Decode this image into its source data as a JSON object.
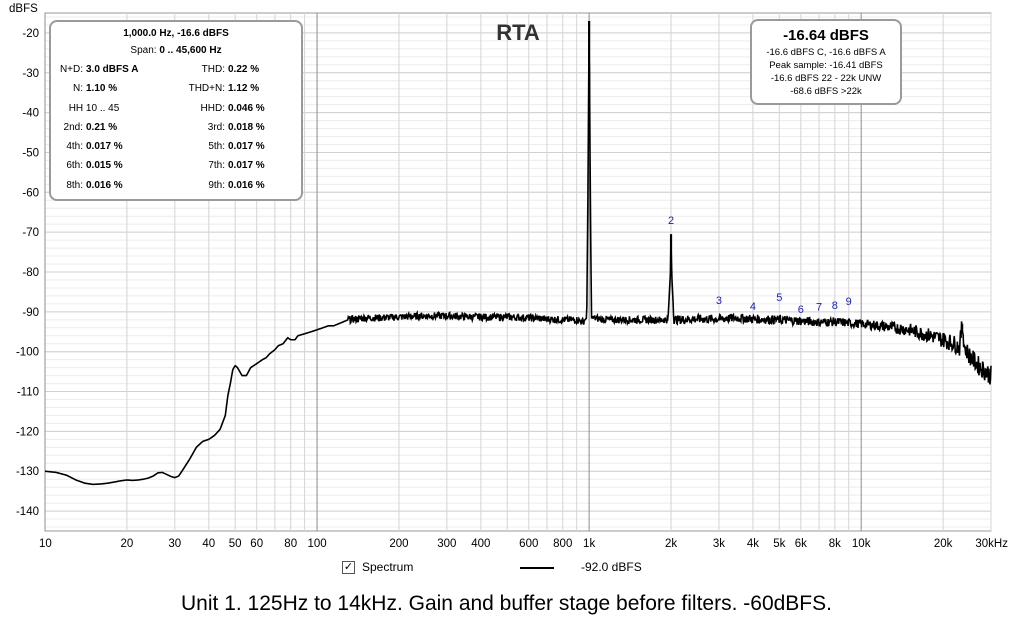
{
  "chart_data": {
    "type": "line",
    "title": "RTA",
    "ylabel": "dBFS",
    "xlabel": "",
    "x_scale": "log",
    "xlim": [
      10,
      30000
    ],
    "ylim": [
      -145,
      -15
    ],
    "grid": true,
    "y_ticks": [
      "-20",
      "-30",
      "-40",
      "-50",
      "-60",
      "-70",
      "-80",
      "-90",
      "-100",
      "-110",
      "-120",
      "-130",
      "-140"
    ],
    "y_tick_values": [
      -20,
      -30,
      -40,
      -50,
      -60,
      -70,
      -80,
      -90,
      -100,
      -110,
      -120,
      -130,
      -140
    ],
    "x_ticks": [
      "10",
      "20",
      "30",
      "40",
      "50",
      "60",
      "80",
      "100",
      "200",
      "300",
      "400",
      "600",
      "800",
      "1k",
      "2k",
      "3k",
      "4k",
      "5k",
      "6k",
      "8k",
      "10k",
      "20k",
      "30kHz"
    ],
    "x_tick_values": [
      10,
      20,
      30,
      40,
      50,
      60,
      80,
      100,
      200,
      300,
      400,
      600,
      800,
      1000,
      2000,
      3000,
      4000,
      5000,
      6000,
      8000,
      10000,
      20000,
      30000
    ],
    "series": [
      {
        "name": "Spectrum",
        "color": "#000000",
        "points": [
          [
            10,
            -130
          ],
          [
            11,
            -130.3
          ],
          [
            12,
            -131
          ],
          [
            13,
            -132.2
          ],
          [
            14,
            -133
          ],
          [
            15,
            -133.3
          ],
          [
            16,
            -133.2
          ],
          [
            17,
            -133
          ],
          [
            18,
            -132.7
          ],
          [
            19,
            -132.4
          ],
          [
            20,
            -132.2
          ],
          [
            21,
            -132.3
          ],
          [
            22,
            -132.2
          ],
          [
            23,
            -132
          ],
          [
            24,
            -131.7
          ],
          [
            25,
            -131.2
          ],
          [
            26,
            -130.4
          ],
          [
            27,
            -130.3
          ],
          [
            28,
            -130.8
          ],
          [
            29,
            -131.3
          ],
          [
            30,
            -131.6
          ],
          [
            31,
            -131.2
          ],
          [
            32,
            -129.8
          ],
          [
            34,
            -127
          ],
          [
            36,
            -124
          ],
          [
            38,
            -122.5
          ],
          [
            40,
            -122
          ],
          [
            42,
            -121
          ],
          [
            44,
            -119.5
          ],
          [
            46,
            -116
          ],
          [
            47,
            -111
          ],
          [
            48,
            -108
          ],
          [
            49,
            -104.5
          ],
          [
            50,
            -103.5
          ],
          [
            51,
            -104
          ],
          [
            53,
            -106
          ],
          [
            55,
            -106
          ],
          [
            57,
            -104
          ],
          [
            60,
            -103
          ],
          [
            63,
            -102
          ],
          [
            65,
            -101.5
          ],
          [
            67,
            -100.5
          ],
          [
            70,
            -99.5
          ],
          [
            72,
            -98.5
          ],
          [
            75,
            -98
          ],
          [
            78,
            -96.5
          ],
          [
            80,
            -97
          ],
          [
            83,
            -97
          ],
          [
            85,
            -96
          ],
          [
            90,
            -95.5
          ],
          [
            95,
            -95
          ],
          [
            100,
            -94.5
          ],
          [
            105,
            -94
          ],
          [
            110,
            -93.5
          ],
          [
            115,
            -93.5
          ],
          [
            120,
            -93
          ],
          [
            130,
            -92
          ],
          [
            140,
            -91.8
          ],
          [
            150,
            -91.5
          ],
          [
            170,
            -91.5
          ],
          [
            200,
            -91.3
          ],
          [
            250,
            -91
          ],
          [
            300,
            -91
          ],
          [
            350,
            -91.2
          ],
          [
            400,
            -91.3
          ],
          [
            500,
            -91.3
          ],
          [
            600,
            -91.5
          ],
          [
            700,
            -91.8
          ],
          [
            800,
            -92
          ],
          [
            900,
            -92
          ],
          [
            950,
            -92.5
          ],
          [
            980,
            -91.5
          ],
          [
            990,
            -60
          ],
          [
            1000,
            -17
          ],
          [
            1010,
            -60
          ],
          [
            1020,
            -91.5
          ],
          [
            1100,
            -91.8
          ],
          [
            1200,
            -92
          ],
          [
            1500,
            -92
          ],
          [
            1800,
            -92
          ],
          [
            1950,
            -92
          ],
          [
            1990,
            -80
          ],
          [
            2000,
            -70.5
          ],
          [
            2010,
            -80
          ],
          [
            2050,
            -92
          ],
          [
            2500,
            -91.8
          ],
          [
            3000,
            -91.8
          ],
          [
            3500,
            -91.5
          ],
          [
            4000,
            -91.8
          ],
          [
            5000,
            -92
          ],
          [
            6000,
            -92.3
          ],
          [
            7000,
            -92.6
          ],
          [
            8000,
            -92.5
          ],
          [
            9000,
            -92.8
          ],
          [
            10000,
            -93
          ],
          [
            12000,
            -93.6
          ],
          [
            15000,
            -94.5
          ],
          [
            18000,
            -96
          ],
          [
            20000,
            -97
          ],
          [
            22000,
            -98
          ],
          [
            23000,
            -99
          ],
          [
            23500,
            -93
          ],
          [
            24000,
            -99
          ],
          [
            25000,
            -101
          ],
          [
            27000,
            -103.5
          ],
          [
            30000,
            -106
          ]
        ]
      }
    ],
    "harmonic_labels": [
      {
        "text": "2",
        "x": 2000,
        "y": -68
      },
      {
        "text": "3",
        "x": 3000,
        "y": -88
      },
      {
        "text": "4",
        "x": 4000,
        "y": -89.5
      },
      {
        "text": "5",
        "x": 5000,
        "y": -87.3
      },
      {
        "text": "6",
        "x": 6000,
        "y": -90.3
      },
      {
        "text": "7",
        "x": 7000,
        "y": -89.7
      },
      {
        "text": "8",
        "x": 8000,
        "y": -89.3
      },
      {
        "text": "9",
        "x": 9000,
        "y": -88.3
      }
    ],
    "harmonic_color": "#1f1faa",
    "legend_position": "bottom"
  },
  "rta_title": "RTA",
  "cursor_box": {
    "header": "1,000.0 Hz, -16.6 dBFS",
    "span_label": "Span:",
    "span_value": "0 .. 45,600 Hz",
    "rows": [
      [
        {
          "label": "N+D:",
          "value": "3.0 dBFS A"
        },
        {
          "label": "THD:",
          "value": "0.22 %"
        }
      ],
      [
        {
          "label": "N:",
          "value": "1.10 %"
        },
        {
          "label": "THD+N:",
          "value": "1.12 %"
        }
      ],
      [
        {
          "label": "HH 10 .. 45",
          "value": ""
        },
        {
          "label": "HHD:",
          "value": "0.046 %"
        }
      ],
      [
        {
          "label": "2nd:",
          "value": "0.21 %"
        },
        {
          "label": "3rd:",
          "value": "0.018 %"
        }
      ],
      [
        {
          "label": "4th:",
          "value": "0.017 %"
        },
        {
          "label": "5th:",
          "value": "0.017 %"
        }
      ],
      [
        {
          "label": "6th:",
          "value": "0.015 %"
        },
        {
          "label": "7th:",
          "value": "0.017 %"
        }
      ],
      [
        {
          "label": "8th:",
          "value": "0.016 %"
        },
        {
          "label": "9th:",
          "value": "0.016 %"
        }
      ]
    ]
  },
  "level_box": {
    "value": "-16.64 dBFS",
    "lines": [
      "-16.6 dBFS C, -16.6 dBFS A",
      "Peak sample: -16.41 dBFS",
      "-16.6 dBFS 22 - 22k UNW",
      "-68.6 dBFS >22k"
    ]
  },
  "legend": {
    "checkbox_mark": "✓",
    "spectrum_label": "Spectrum",
    "line_value": "-92.0 dBFS"
  },
  "caption": "Unit 1. 125Hz to 14kHz. Gain and buffer stage before filters. -60dBFS."
}
